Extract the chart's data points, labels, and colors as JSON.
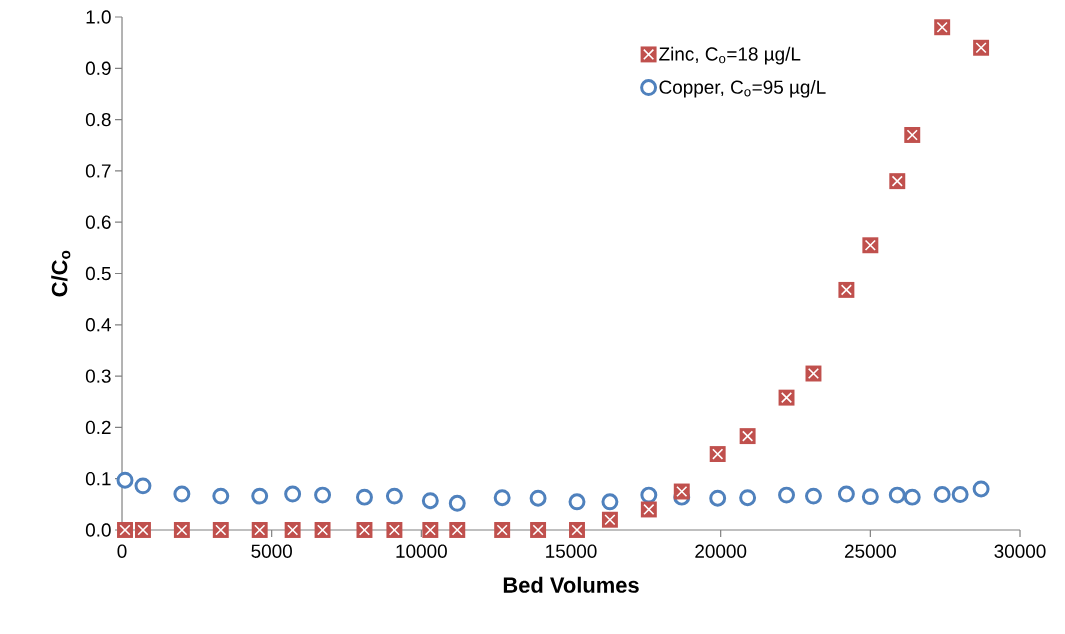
{
  "chart_data": {
    "type": "scatter",
    "xlabel": "Bed Volumes",
    "ylabel": "C/C$_{o}$",
    "xlim": [
      0,
      30000
    ],
    "ylim": [
      0,
      1.0
    ],
    "xticks": [
      0,
      5000,
      10000,
      15000,
      20000,
      25000,
      30000
    ],
    "yticks": [
      {
        "value": 0,
        "label": "0.0"
      },
      {
        "value": 0.1,
        "label": "0.1"
      },
      {
        "value": 0.2,
        "label": "0.2"
      },
      {
        "value": 0.3,
        "label": "0.3"
      },
      {
        "value": 0.4,
        "label": "0.4"
      },
      {
        "value": 0.5,
        "label": "0.5"
      },
      {
        "value": 0.6,
        "label": "0.6"
      },
      {
        "value": 0.7,
        "label": "0.7"
      },
      {
        "value": 0.8,
        "label": "0.8"
      },
      {
        "value": 0.9,
        "label": "0.9"
      },
      {
        "value": 1.0,
        "label": "1.0"
      }
    ],
    "grid": false,
    "legend": "top right",
    "series": [
      {
        "name": "Zinc, C$_{o}$=18 µg/L",
        "color": "#c0504d",
        "marker": "square",
        "x": [
          100,
          700,
          2000,
          3300,
          4600,
          5700,
          6700,
          8100,
          9100,
          10300,
          11200,
          12700,
          13900,
          15200,
          16300,
          17600,
          18700,
          19900,
          20900,
          22200,
          23100,
          24200,
          25000,
          25900,
          26400,
          27400,
          28700
        ],
        "values": [
          0,
          0,
          0,
          0,
          0,
          0,
          0,
          0,
          0,
          0,
          0,
          0,
          0,
          0,
          0.02,
          0.04,
          0.075,
          0.148,
          0.183,
          0.258,
          0.305,
          0.468,
          0.555,
          0.68,
          0.77,
          0.98,
          0.94
        ]
      },
      {
        "name": "Copper, C$_{o}$=95 µg/L",
        "color": "#4f81bd",
        "marker": "circle",
        "x": [
          100,
          700,
          2000,
          3300,
          4600,
          5700,
          6700,
          8100,
          9100,
          10300,
          11200,
          12700,
          13900,
          15200,
          16300,
          17600,
          18700,
          19900,
          20900,
          22200,
          23100,
          24200,
          25000,
          25900,
          26400,
          27400,
          28000,
          28700
        ],
        "values": [
          0.097,
          0.086,
          0.07,
          0.066,
          0.066,
          0.07,
          0.068,
          0.064,
          0.066,
          0.057,
          0.052,
          0.063,
          0.062,
          0.055,
          0.055,
          0.068,
          0.064,
          0.062,
          0.063,
          0.068,
          0.066,
          0.07,
          0.065,
          0.068,
          0.064,
          0.069,
          0.069,
          0.08
        ]
      }
    ]
  }
}
